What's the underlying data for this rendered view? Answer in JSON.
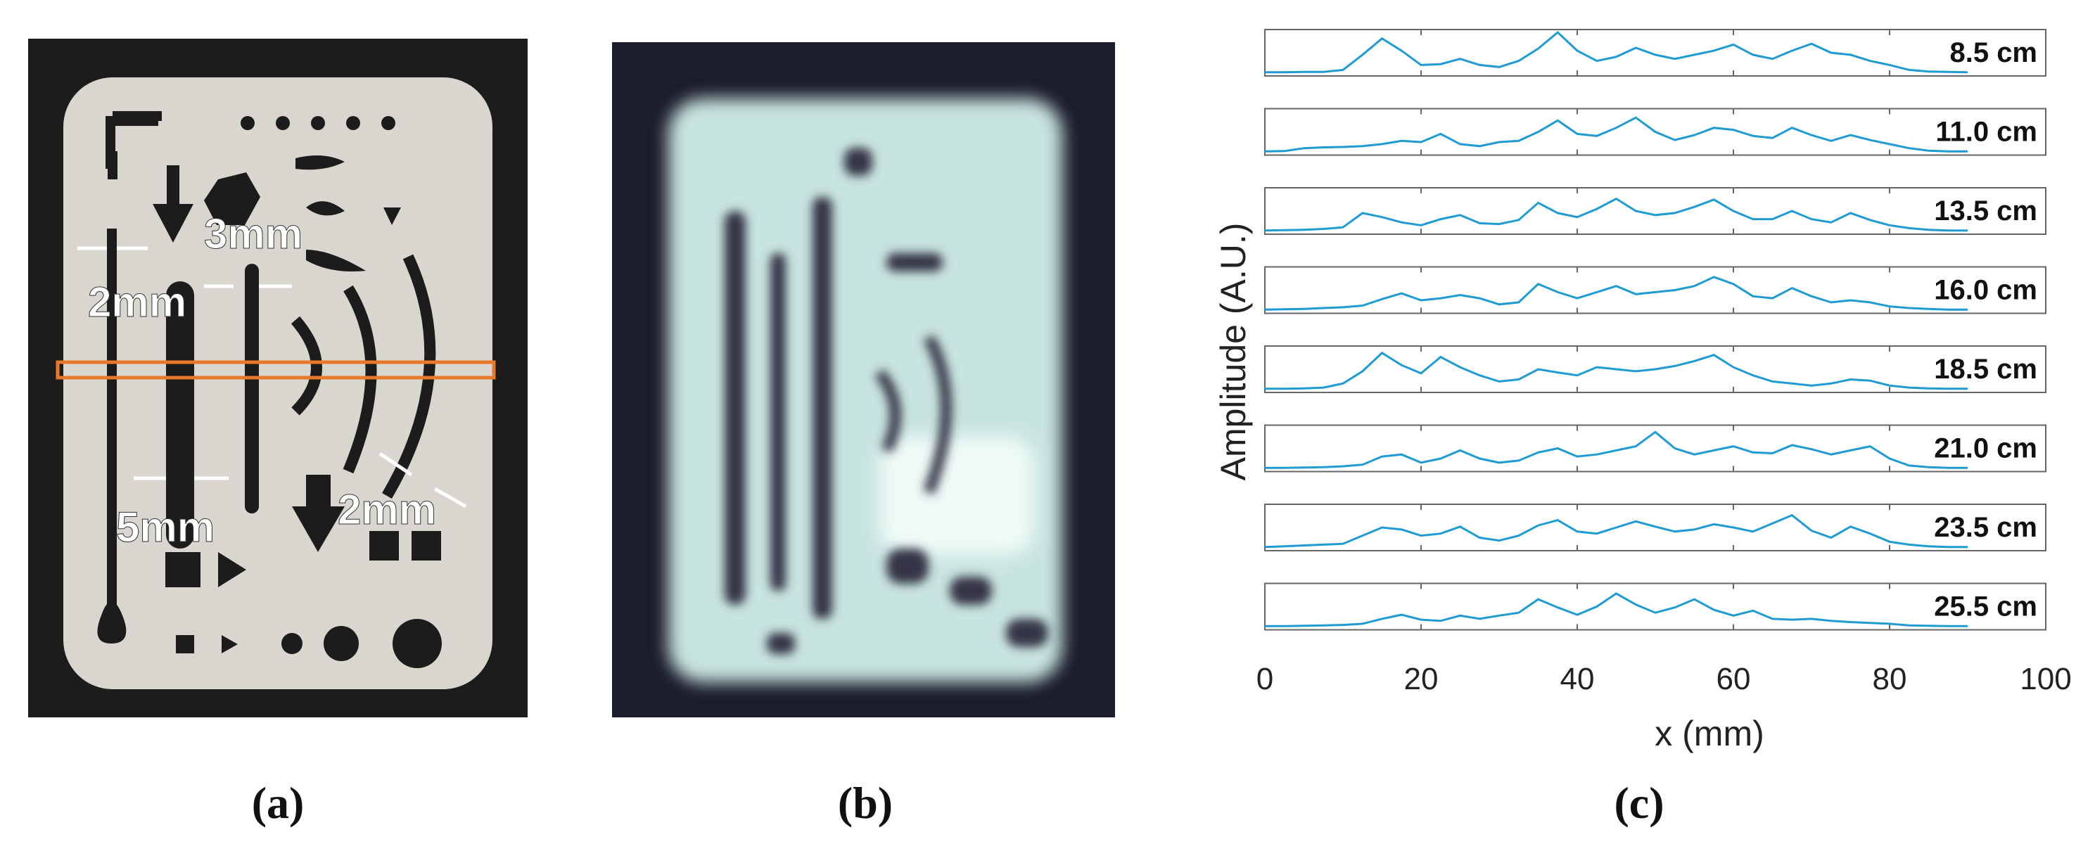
{
  "panel_a": {
    "dimension_labels": [
      {
        "id": "width-2mm-left",
        "text": "2mm"
      },
      {
        "id": "width-3mm",
        "text": "3mm"
      },
      {
        "id": "width-5mm",
        "text": "5mm"
      },
      {
        "id": "width-2mm-right",
        "text": "2mm"
      }
    ],
    "colors": {
      "background": "#1c1c1c",
      "plate": "#d9d6cf",
      "cutout": "#1c1c1c",
      "marker": "#e8792a",
      "label": "#ffffff"
    }
  },
  "panel_b": {
    "colors": {
      "background": "#1b1c2c",
      "bright": "#d8f0ea",
      "dark": "#353646"
    }
  },
  "captions": {
    "a": "(a)",
    "b": "(b)",
    "c": "(c)"
  },
  "chart_data": {
    "type": "line",
    "xlabel": "x (mm)",
    "ylabel": "Amplitude (A.U.)",
    "xlim": [
      0,
      100
    ],
    "x_ticks": [
      0,
      20,
      40,
      60,
      80,
      100
    ],
    "grid": false,
    "line_color": "#1f9bd4",
    "x": [
      0,
      2.5,
      5,
      7.5,
      10,
      12.5,
      15,
      17.5,
      20,
      22.5,
      25,
      27.5,
      30,
      32.5,
      35,
      37.5,
      40,
      42.5,
      45,
      47.5,
      50,
      52.5,
      55,
      57.5,
      60,
      62.5,
      65,
      67.5,
      70,
      72.5,
      75,
      77.5,
      80,
      82.5,
      85,
      87.5,
      90
    ],
    "series": [
      {
        "name": "8.5 cm",
        "values": [
          0.02,
          0.02,
          0.03,
          0.03,
          0.08,
          0.45,
          0.85,
          0.55,
          0.2,
          0.22,
          0.35,
          0.2,
          0.15,
          0.3,
          0.6,
          1.0,
          0.55,
          0.3,
          0.4,
          0.62,
          0.45,
          0.35,
          0.45,
          0.55,
          0.7,
          0.45,
          0.35,
          0.55,
          0.72,
          0.5,
          0.45,
          0.3,
          0.2,
          0.08,
          0.04,
          0.03,
          0.02
        ]
      },
      {
        "name": "11.0 cm",
        "values": [
          0.02,
          0.03,
          0.1,
          0.12,
          0.13,
          0.15,
          0.2,
          0.28,
          0.25,
          0.45,
          0.2,
          0.15,
          0.25,
          0.28,
          0.5,
          0.78,
          0.45,
          0.4,
          0.6,
          0.85,
          0.5,
          0.3,
          0.42,
          0.6,
          0.55,
          0.4,
          0.35,
          0.6,
          0.42,
          0.28,
          0.42,
          0.3,
          0.2,
          0.1,
          0.04,
          0.02,
          0.02
        ]
      },
      {
        "name": "13.5 cm",
        "values": [
          0.02,
          0.03,
          0.04,
          0.06,
          0.1,
          0.45,
          0.35,
          0.22,
          0.15,
          0.3,
          0.4,
          0.2,
          0.18,
          0.28,
          0.7,
          0.45,
          0.35,
          0.55,
          0.8,
          0.5,
          0.4,
          0.45,
          0.6,
          0.78,
          0.5,
          0.3,
          0.3,
          0.5,
          0.3,
          0.22,
          0.45,
          0.28,
          0.15,
          0.08,
          0.04,
          0.02,
          0.02
        ]
      },
      {
        "name": "16.0 cm",
        "values": [
          0.02,
          0.03,
          0.04,
          0.06,
          0.08,
          0.12,
          0.28,
          0.42,
          0.25,
          0.3,
          0.38,
          0.3,
          0.15,
          0.2,
          0.65,
          0.45,
          0.3,
          0.45,
          0.6,
          0.4,
          0.45,
          0.5,
          0.6,
          0.82,
          0.65,
          0.35,
          0.3,
          0.55,
          0.35,
          0.2,
          0.25,
          0.2,
          0.1,
          0.06,
          0.04,
          0.02,
          0.02
        ]
      },
      {
        "name": "18.5 cm",
        "values": [
          0.02,
          0.02,
          0.03,
          0.05,
          0.15,
          0.45,
          0.9,
          0.6,
          0.4,
          0.8,
          0.55,
          0.35,
          0.2,
          0.25,
          0.5,
          0.42,
          0.35,
          0.55,
          0.5,
          0.45,
          0.5,
          0.58,
          0.7,
          0.85,
          0.55,
          0.35,
          0.2,
          0.15,
          0.1,
          0.15,
          0.25,
          0.22,
          0.1,
          0.05,
          0.03,
          0.02,
          0.02
        ]
      },
      {
        "name": "21.0 cm",
        "values": [
          0.02,
          0.02,
          0.03,
          0.04,
          0.06,
          0.1,
          0.3,
          0.35,
          0.15,
          0.25,
          0.45,
          0.25,
          0.15,
          0.2,
          0.4,
          0.5,
          0.3,
          0.35,
          0.45,
          0.55,
          0.9,
          0.5,
          0.35,
          0.45,
          0.55,
          0.4,
          0.38,
          0.58,
          0.48,
          0.35,
          0.45,
          0.55,
          0.25,
          0.08,
          0.04,
          0.02,
          0.02
        ]
      },
      {
        "name": "23.5 cm",
        "values": [
          0.02,
          0.04,
          0.06,
          0.08,
          0.1,
          0.3,
          0.5,
          0.45,
          0.3,
          0.35,
          0.52,
          0.25,
          0.18,
          0.3,
          0.55,
          0.68,
          0.4,
          0.35,
          0.5,
          0.65,
          0.52,
          0.4,
          0.45,
          0.58,
          0.5,
          0.4,
          0.6,
          0.8,
          0.42,
          0.25,
          0.52,
          0.35,
          0.15,
          0.08,
          0.04,
          0.02,
          0.02
        ]
      },
      {
        "name": "25.5 cm",
        "values": [
          0.02,
          0.02,
          0.03,
          0.04,
          0.05,
          0.08,
          0.2,
          0.3,
          0.18,
          0.15,
          0.28,
          0.2,
          0.28,
          0.35,
          0.68,
          0.48,
          0.3,
          0.5,
          0.82,
          0.55,
          0.35,
          0.48,
          0.68,
          0.42,
          0.28,
          0.4,
          0.2,
          0.18,
          0.2,
          0.15,
          0.12,
          0.1,
          0.08,
          0.04,
          0.03,
          0.02,
          0.02
        ]
      }
    ]
  }
}
